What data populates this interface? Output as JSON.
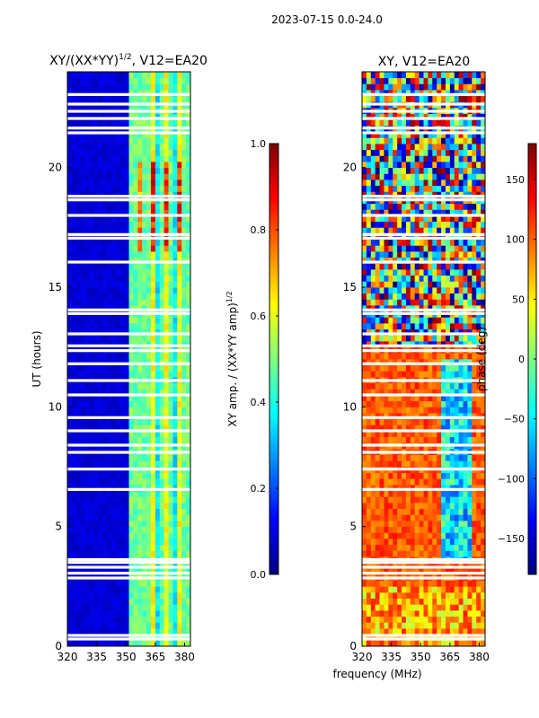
{
  "suptitle": "2023-07-15 0.0-24.0",
  "shared_xlabel": "frequency (MHz)",
  "colors": {
    "jet": [
      "#00007f",
      "#0000ff",
      "#007fff",
      "#00ffff",
      "#7fff7f",
      "#ffff00",
      "#ff7f00",
      "#ff0000",
      "#7f0000"
    ],
    "gap": "#ffffff"
  },
  "chart_data": [
    {
      "type": "heatmap",
      "title": "XY/(XX*YY)",
      "title_sup": "1/2",
      "title_suffix": ", V12=EA20",
      "ylabel": "UT (hours)",
      "xlabel": "",
      "xlim": [
        320,
        383
      ],
      "ylim": [
        0,
        24
      ],
      "xticks": [
        320,
        335,
        350,
        365,
        380
      ],
      "yticks": [
        0,
        5,
        10,
        15,
        20
      ],
      "colorbar": {
        "label": "XY amp. / (XX*YY amp)",
        "label_sup": "1/2",
        "range": [
          0.0,
          1.0
        ],
        "ticks": [
          "0.0",
          "0.2",
          "0.4",
          "0.6",
          "0.8",
          "1.0"
        ],
        "tick_values": [
          0.0,
          0.2,
          0.4,
          0.6,
          0.8,
          1.0
        ]
      },
      "gaps_hours": [
        0.3,
        0.45,
        2.85,
        3.05,
        3.3,
        3.5,
        3.62,
        6.55,
        7.4,
        8.1,
        8.4,
        9.0,
        9.55,
        10.5,
        11.1,
        11.8,
        12.35,
        12.55,
        13.05,
        13.9,
        14.05,
        16.05,
        17.05,
        17.2,
        18.0,
        18.65,
        18.8,
        21.45,
        21.65,
        22.05,
        22.35,
        22.65,
        23.05
      ],
      "description_rows": [
        {
          "band": "320-352",
          "level": 0.08
        },
        {
          "band": "352-383",
          "level": 0.45
        }
      ]
    },
    {
      "type": "heatmap",
      "title": "XY, V12=EA20",
      "ylabel": "",
      "xlabel": "",
      "xlim": [
        320,
        383
      ],
      "ylim": [
        0,
        24
      ],
      "xticks": [
        320,
        335,
        350,
        365,
        380
      ],
      "yticks": [
        0,
        5,
        10,
        15,
        20
      ],
      "colorbar": {
        "label": "phase (deg)",
        "range": [
          -180,
          180
        ],
        "ticks": [
          "−150",
          "−100",
          "−50",
          "0",
          "50",
          "100",
          "150"
        ],
        "tick_values": [
          -150,
          -100,
          -50,
          0,
          50,
          100,
          150
        ]
      },
      "gaps_hours": [
        0.3,
        0.45,
        2.85,
        3.05,
        3.3,
        3.5,
        3.62,
        6.55,
        7.4,
        8.1,
        8.4,
        9.0,
        9.55,
        10.5,
        11.1,
        11.8,
        12.35,
        12.55,
        13.05,
        13.9,
        14.05,
        16.05,
        17.05,
        17.2,
        18.0,
        18.65,
        18.8,
        21.45,
        21.65,
        22.05,
        22.35,
        22.65,
        23.05
      ]
    }
  ]
}
